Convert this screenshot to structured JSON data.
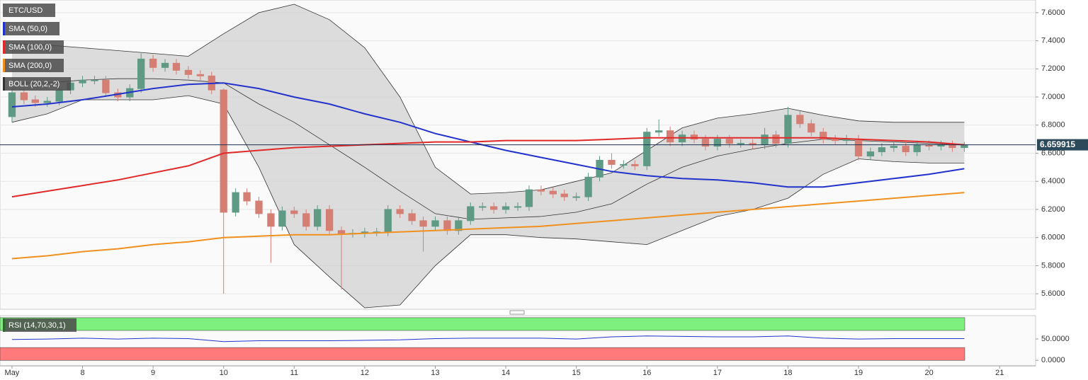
{
  "chart_data": {
    "type": "candlestick",
    "title": "ETC/USD",
    "x": [
      7,
      7.17,
      7.33,
      7.5,
      7.67,
      7.83,
      8,
      8.17,
      8.33,
      8.5,
      8.67,
      8.83,
      9,
      9.17,
      9.33,
      9.5,
      9.67,
      9.83,
      10,
      10.17,
      10.33,
      10.5,
      10.67,
      10.83,
      11,
      11.17,
      11.33,
      11.5,
      11.67,
      11.83,
      12,
      12.17,
      12.33,
      12.5,
      12.67,
      12.83,
      13,
      13.17,
      13.33,
      13.5,
      13.67,
      13.83,
      14,
      14.17,
      14.33,
      14.5,
      14.67,
      14.83,
      15,
      15.17,
      15.33,
      15.5,
      15.67,
      15.83,
      16,
      16.17,
      16.33,
      16.5,
      16.67,
      16.83,
      17,
      17.17,
      17.33,
      17.5,
      17.67,
      17.83,
      18,
      18.17,
      18.33,
      18.5,
      18.67,
      18.83,
      19,
      19.17,
      19.33,
      19.5,
      19.67,
      19.83,
      20,
      20.17,
      20.33,
      20.5
    ],
    "open": [
      6.86,
      7.03,
      6.98,
      6.96,
      6.97,
      7.05,
      7.1,
      7.12,
      7.12,
      7.03,
      7.0,
      7.06,
      7.27,
      7.21,
      7.24,
      7.19,
      7.16,
      7.15,
      7.05,
      6.18,
      6.32,
      6.26,
      6.17,
      6.08,
      6.19,
      6.17,
      6.08,
      6.2,
      6.05,
      6.03,
      6.03,
      6.04,
      6.04,
      6.2,
      6.17,
      6.12,
      6.08,
      6.12,
      6.05,
      6.12,
      6.22,
      6.22,
      6.2,
      6.22,
      6.22,
      6.34,
      6.33,
      6.31,
      6.29,
      6.29,
      6.43,
      6.55,
      6.52,
      6.52,
      6.51,
      6.75,
      6.76,
      6.68,
      6.73,
      6.7,
      6.65,
      6.7,
      6.67,
      6.67,
      6.66,
      6.73,
      6.67,
      6.87,
      6.81,
      6.75,
      6.7,
      6.69,
      6.7,
      6.58,
      6.61,
      6.64,
      6.65,
      6.61,
      6.66,
      6.65,
      6.66,
      6.64
    ],
    "high": [
      7.06,
      7.06,
      7.01,
      7.0,
      7.08,
      7.13,
      7.15,
      7.15,
      7.15,
      7.06,
      7.09,
      7.31,
      7.3,
      7.27,
      7.27,
      7.22,
      7.19,
      7.18,
      7.06,
      6.35,
      6.35,
      6.29,
      6.2,
      6.22,
      6.22,
      6.2,
      6.23,
      6.23,
      6.08,
      6.06,
      6.07,
      6.07,
      6.23,
      6.23,
      6.2,
      6.15,
      6.15,
      6.15,
      6.15,
      6.25,
      6.25,
      6.25,
      6.25,
      6.25,
      6.37,
      6.37,
      6.36,
      6.34,
      6.32,
      6.46,
      6.58,
      6.6,
      6.55,
      6.55,
      6.78,
      6.84,
      6.79,
      6.76,
      6.76,
      6.73,
      6.73,
      6.73,
      6.7,
      6.7,
      6.78,
      6.76,
      6.93,
      6.9,
      6.84,
      6.78,
      6.73,
      6.73,
      6.73,
      6.64,
      6.67,
      6.68,
      6.68,
      6.69,
      6.69,
      6.69,
      6.69,
      6.68
    ],
    "low": [
      6.82,
      6.95,
      6.93,
      6.93,
      6.94,
      7.02,
      7.07,
      7.09,
      7.0,
      6.97,
      6.97,
      7.03,
      7.18,
      7.18,
      7.16,
      7.13,
      7.12,
      7.02,
      5.6,
      6.15,
      6.23,
      6.14,
      5.82,
      6.05,
      6.14,
      6.05,
      6.05,
      6.02,
      5.63,
      6.0,
      6.0,
      6.01,
      6.01,
      6.14,
      6.09,
      5.9,
      6.05,
      6.02,
      6.02,
      6.09,
      6.19,
      6.17,
      6.17,
      6.19,
      6.19,
      6.3,
      6.28,
      6.26,
      6.26,
      6.26,
      6.4,
      6.49,
      6.49,
      6.48,
      6.48,
      6.72,
      6.65,
      6.65,
      6.67,
      6.62,
      6.62,
      6.64,
      6.64,
      6.63,
      6.63,
      6.64,
      6.64,
      6.78,
      6.72,
      6.67,
      6.66,
      6.66,
      6.55,
      6.55,
      6.58,
      6.61,
      6.58,
      6.58,
      6.62,
      6.62,
      6.61,
      6.61
    ],
    "close": [
      7.03,
      6.98,
      6.96,
      6.97,
      7.05,
      7.1,
      7.12,
      7.12,
      7.03,
      7.0,
      7.06,
      7.27,
      7.21,
      7.24,
      7.19,
      7.16,
      7.15,
      7.05,
      6.18,
      6.32,
      6.26,
      6.17,
      6.08,
      6.19,
      6.17,
      6.08,
      6.2,
      6.05,
      6.03,
      6.03,
      6.04,
      6.04,
      6.2,
      6.17,
      6.12,
      6.08,
      6.12,
      6.05,
      6.12,
      6.22,
      6.22,
      6.2,
      6.22,
      6.22,
      6.34,
      6.33,
      6.31,
      6.29,
      6.29,
      6.43,
      6.55,
      6.52,
      6.52,
      6.51,
      6.75,
      6.76,
      6.68,
      6.73,
      6.7,
      6.65,
      6.7,
      6.67,
      6.67,
      6.66,
      6.73,
      6.67,
      6.87,
      6.81,
      6.75,
      6.7,
      6.69,
      6.7,
      6.58,
      6.61,
      6.64,
      6.65,
      6.61,
      6.66,
      6.65,
      6.66,
      6.64,
      6.66
    ],
    "up_color": "#5f9a85",
    "down_color": "#d57f74",
    "last_price": 6.659915,
    "xlim": [
      6.83,
      21.51
    ],
    "xticks": [
      {
        "value": 7,
        "label": "May"
      },
      8,
      9,
      10,
      11,
      12,
      13,
      14,
      15,
      16,
      17,
      18,
      19,
      20,
      21
    ],
    "ylim": [
      5.49,
      7.69
    ],
    "yticks": [
      {
        "value": 5.6,
        "label": "5.6000"
      },
      {
        "value": 5.8,
        "label": "5.8000"
      },
      {
        "value": 6.0,
        "label": "6.0000"
      },
      {
        "value": 6.2,
        "label": "6.2000"
      },
      {
        "value": 6.4,
        "label": "6.4000"
      },
      {
        "value": 6.6,
        "label": "6.6000"
      },
      {
        "value": 6.8,
        "label": "6.8000"
      },
      {
        "value": 7.0,
        "label": "7.0000"
      },
      {
        "value": 7.2,
        "label": "7.2000"
      },
      {
        "value": 7.4,
        "label": "7.4000"
      },
      {
        "value": 7.6,
        "label": "7.6000"
      }
    ],
    "grid": true,
    "overlays": [
      {
        "name": "SMA (50,0)",
        "color": "#2233cc",
        "x": [
          7,
          7.5,
          8,
          8.5,
          9,
          9.5,
          10,
          10.5,
          11,
          11.5,
          12,
          12.5,
          13,
          13.5,
          14,
          14.5,
          15,
          15.5,
          16,
          16.5,
          17,
          17.5,
          18,
          18.5,
          19,
          19.5,
          20,
          20.5
        ],
        "values": [
          6.93,
          6.95,
          6.98,
          7.02,
          7.06,
          7.09,
          7.1,
          7.06,
          7.0,
          6.95,
          6.88,
          6.82,
          6.74,
          6.68,
          6.62,
          6.57,
          6.52,
          6.47,
          6.44,
          6.42,
          6.41,
          6.39,
          6.36,
          6.36,
          6.39,
          6.42,
          6.45,
          6.49
        ]
      },
      {
        "name": "SMA (100,0)",
        "color": "#e02a2a",
        "x": [
          7,
          7.5,
          8,
          8.5,
          9,
          9.5,
          10,
          10.5,
          11,
          11.5,
          12,
          12.5,
          13,
          13.5,
          14,
          14.5,
          15,
          15.5,
          16,
          16.5,
          17,
          17.5,
          18,
          18.5,
          19,
          19.5,
          20,
          20.5
        ],
        "values": [
          6.29,
          6.33,
          6.37,
          6.41,
          6.46,
          6.51,
          6.6,
          6.62,
          6.64,
          6.65,
          6.66,
          6.67,
          6.68,
          6.68,
          6.69,
          6.69,
          6.69,
          6.7,
          6.71,
          6.71,
          6.71,
          6.71,
          6.71,
          6.71,
          6.7,
          6.69,
          6.68,
          6.66
        ]
      },
      {
        "name": "SMA (200,0)",
        "color": "#f0901e",
        "x": [
          7,
          7.5,
          8,
          8.5,
          9,
          9.5,
          10,
          10.5,
          11,
          11.5,
          12,
          12.5,
          13,
          13.5,
          14,
          14.5,
          15,
          15.5,
          16,
          16.5,
          17,
          17.5,
          18,
          18.5,
          19,
          19.5,
          20,
          20.5
        ],
        "values": [
          5.85,
          5.87,
          5.9,
          5.92,
          5.95,
          5.97,
          6.0,
          6.01,
          6.02,
          6.02,
          6.03,
          6.04,
          6.05,
          6.06,
          6.07,
          6.08,
          6.1,
          6.12,
          6.14,
          6.16,
          6.18,
          6.2,
          6.22,
          6.24,
          6.26,
          6.28,
          6.3,
          6.32
        ]
      }
    ],
    "boll": {
      "name": "BOLL (20,2,-2)",
      "color": "#333333",
      "x": [
        7,
        7.5,
        8,
        8.5,
        9,
        9.5,
        10,
        10.5,
        11,
        11.5,
        12,
        12.5,
        13,
        13.5,
        14,
        14.5,
        15,
        15.5,
        16,
        16.5,
        17,
        17.5,
        18,
        18.5,
        19,
        19.5,
        20,
        20.5
      ],
      "upper": [
        7.38,
        7.37,
        7.35,
        7.33,
        7.31,
        7.29,
        7.45,
        7.6,
        7.66,
        7.55,
        7.35,
        7.0,
        6.5,
        6.31,
        6.32,
        6.34,
        6.4,
        6.46,
        6.62,
        6.78,
        6.85,
        6.88,
        6.92,
        6.87,
        6.83,
        6.82,
        6.82,
        6.82
      ],
      "middle": [
        7.1,
        7.1,
        7.12,
        7.13,
        7.13,
        7.12,
        7.1,
        6.95,
        6.82,
        6.66,
        6.5,
        6.33,
        6.17,
        6.13,
        6.14,
        6.15,
        6.18,
        6.24,
        6.38,
        6.5,
        6.58,
        6.63,
        6.67,
        6.7,
        6.69,
        6.68,
        6.67,
        6.66
      ],
      "lower": [
        6.82,
        6.88,
        6.98,
        6.98,
        6.98,
        7.01,
        6.95,
        6.5,
        5.95,
        5.72,
        5.5,
        5.52,
        5.8,
        6.02,
        6.02,
        6.0,
        5.99,
        5.97,
        5.95,
        6.05,
        6.15,
        6.2,
        6.28,
        6.45,
        6.56,
        6.54,
        6.53,
        6.53
      ]
    },
    "rsi": {
      "name": "RSI (14,70,30,1)",
      "color": "#2233cc",
      "x": [
        7,
        7.5,
        8,
        8.5,
        9,
        9.5,
        10,
        10.5,
        11,
        11.5,
        12,
        12.5,
        13,
        13.5,
        14,
        14.5,
        15,
        15.5,
        16,
        16.5,
        17,
        17.5,
        18,
        18.5,
        19,
        19.5,
        20,
        20.5
      ],
      "values": [
        49,
        50,
        52,
        50,
        52,
        51,
        44,
        46,
        46,
        46,
        47,
        48,
        51,
        52,
        52,
        52,
        50,
        55,
        57,
        56,
        55,
        55,
        57,
        52,
        50,
        51,
        51,
        51
      ],
      "overbought": 70,
      "oversold": 30,
      "ylim": [
        -12.9,
        104.8
      ],
      "yticks": [
        {
          "value": 0,
          "label": "0.0000"
        },
        {
          "value": 50,
          "label": "50.0000"
        }
      ]
    }
  }
}
